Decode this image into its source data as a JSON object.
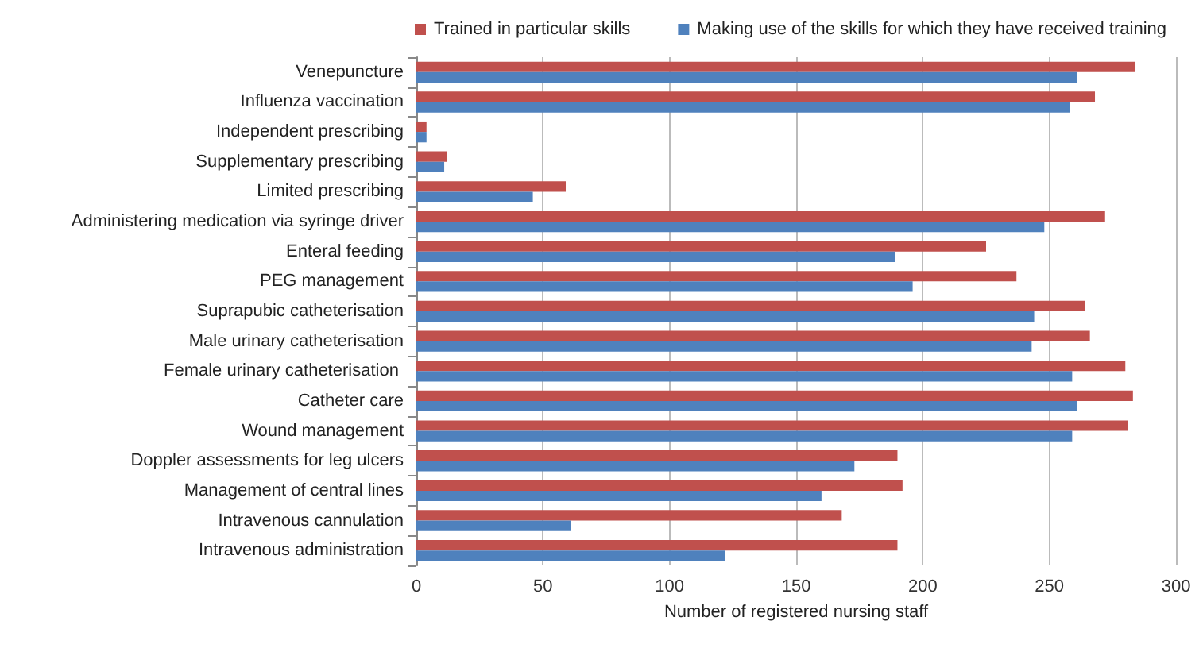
{
  "chart_data": {
    "type": "bar",
    "orientation": "horizontal",
    "xlabel": "Number of registered nursing staff",
    "categories": [
      "Venepuncture",
      "Influenza vaccination",
      "Independent prescribing",
      "Supplementary prescribing",
      "Limited prescribing",
      "Administering medication via syringe driver",
      "Enteral feeding",
      "PEG management",
      "Suprapubic catheterisation",
      "Male urinary catheterisation",
      "Female urinary catheterisation ",
      "Catheter care",
      "Wound management",
      "Doppler assessments for leg ulcers",
      "Management of central lines",
      "Intravenous cannulation",
      "Intravenous administration"
    ],
    "series": [
      {
        "name": "Trained in particular skills",
        "color": "#c0504d",
        "values": [
          284,
          268,
          4,
          12,
          59,
          272,
          225,
          237,
          264,
          266,
          280,
          283,
          281,
          190,
          192,
          168,
          190
        ]
      },
      {
        "name": "Making use of the skills for which they have received training",
        "color": "#4f81bd",
        "values": [
          261,
          258,
          4,
          11,
          46,
          248,
          189,
          196,
          244,
          243,
          259,
          261,
          259,
          173,
          160,
          61,
          122
        ]
      }
    ],
    "xlim": [
      0,
      300
    ],
    "xticks": [
      0,
      50,
      100,
      150,
      200,
      250,
      300
    ],
    "grid": "x",
    "legend": "top right"
  }
}
